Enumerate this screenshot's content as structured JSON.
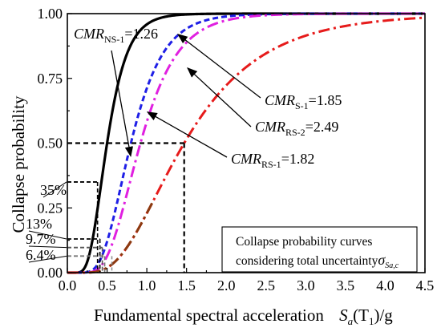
{
  "chart_data": {
    "type": "line",
    "xlabel_main": "Fundamental spectral acceleration",
    "xlabel_math": {
      "S": "S",
      "sub": "a",
      "rest": "(T",
      "sub2": "1",
      "tail": ")/g"
    },
    "ylabel": "Collapse probability",
    "xlim": [
      0,
      4.5
    ],
    "ylim": [
      0,
      1
    ],
    "xticks": [
      "0.0",
      "0.5",
      "1.0",
      "1.5",
      "2.0",
      "2.5",
      "3.0",
      "3.5",
      "4.0",
      "4.5"
    ],
    "yticks": [
      "0.00",
      "0.25",
      "0.50",
      "0.75",
      "1.00"
    ],
    "series": [
      {
        "key": "ns1",
        "cmr": 1.26,
        "beta": 0.4,
        "color": "#000000",
        "style": "solid"
      },
      {
        "key": "s1",
        "cmr": 1.85,
        "beta": 0.4,
        "color": "#1f1fe6",
        "style": "dash"
      },
      {
        "key": "rs2",
        "cmr": 2.49,
        "beta": 0.4,
        "color": "#e020e0",
        "style": "dashdot"
      },
      {
        "key": "rs1",
        "cmr": 1.82,
        "beta": 0.4,
        "color": "#e61b1b",
        "style": "dashdot-red"
      }
    ],
    "annotations": {
      "ns1": {
        "main": "CMR",
        "sub": "NS-1",
        "value": "=1.26"
      },
      "s1": {
        "main": "CMR",
        "sub": "S-1",
        "value": "=1.85"
      },
      "rs2": {
        "main": "CMR",
        "sub": "RS-2",
        "value": "=2.49"
      },
      "rs1": {
        "main": "CMR",
        "sub": "RS-1",
        "value": "=1.82"
      }
    },
    "reference_lines": {
      "median_level": 0.5,
      "median_x": 1.47,
      "levels": [
        {
          "label": "35%",
          "y": 0.35,
          "x": 0.38
        },
        {
          "label": "13%",
          "y": 0.13,
          "x": 0.38
        },
        {
          "label": "9.7%",
          "y": 0.097,
          "x": 0.38
        },
        {
          "label": "6.4%",
          "y": 0.064,
          "x": 0.38
        }
      ]
    },
    "legend_box": {
      "line1": "Collapse probability curves",
      "line2": "considering total uncertainty",
      "sigma": "σ",
      "sigma_sub": "Sa,c"
    }
  }
}
